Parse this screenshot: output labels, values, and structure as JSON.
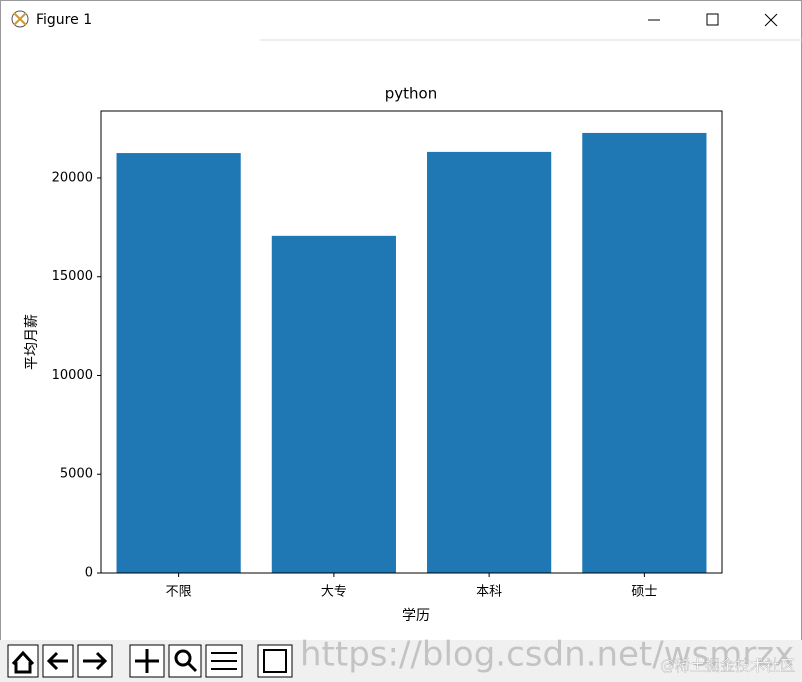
{
  "window": {
    "title": "Figure 1"
  },
  "chart_data": {
    "type": "bar",
    "title": "python",
    "x_label": "学历",
    "y_label": "平均月薪",
    "categories": [
      "不限",
      "大专",
      "本科",
      "硕士"
    ],
    "values": [
      21260,
      17070,
      21320,
      22280
    ],
    "color": "#1f77b4",
    "ylim": [
      0,
      23390
    ],
    "yticks": [
      0,
      5000,
      10000,
      15000,
      20000
    ],
    "grid": false
  },
  "watermark": [
    "https://blog.csdn.net/wsmrzx",
    "@稀土掘金技术社区"
  ]
}
